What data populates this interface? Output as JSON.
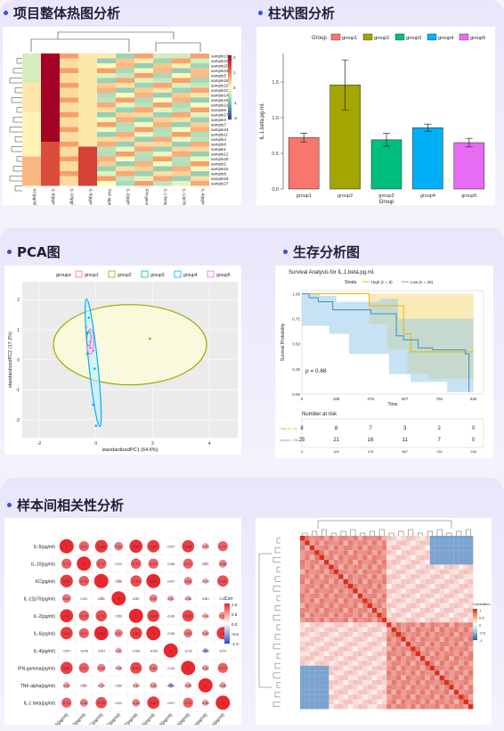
{
  "sections": {
    "heatmap": "项目整体热图分析",
    "bar": "柱状图分析",
    "pca": "PCA图",
    "survival": "生存分析图",
    "correlation": "样本间相关性分析"
  },
  "heatmap": {
    "samples": [
      "sample13",
      "sample22",
      "sample20",
      "sample23",
      "sample5",
      "sample18",
      "sample19",
      "sample10",
      "sample14",
      "sample15",
      "sample21",
      "sample6",
      "sample17",
      "sample3",
      "sample7",
      "sample24",
      "sample11",
      "sample4",
      "sample9",
      "sample1",
      "sample12",
      "sample25",
      "sample2",
      "sample16",
      "sample8",
      "sample26",
      "sample27"
    ],
    "variables": [
      "KC(pg/ml)",
      "IL-6(pg/ml)",
      "IL-10(pg/ml)",
      "IL-5(pg/ml)",
      "TNF-alpha(pg/ml)",
      "IL-2(pg/ml)",
      "IFN-gamma(pg/ml)",
      "IL-1 beta(pg/ml)",
      "IL-12p70(pg/ml)",
      "IL-4(pg/ml)"
    ],
    "scale_ticks": [
      "2",
      "1",
      "0",
      "-1",
      "-2"
    ]
  },
  "bar_chart": {
    "legend_title": "Group",
    "colors": [
      "#f8766d",
      "#a3a500",
      "#00bf7d",
      "#00b0f6",
      "#e76bf3"
    ],
    "chart_data": {
      "type": "bar",
      "categories": [
        "group1",
        "group2",
        "group3",
        "group4",
        "group5"
      ],
      "values": [
        0.72,
        1.46,
        0.69,
        0.86,
        0.65
      ],
      "errors": [
        0.06,
        0.35,
        0.09,
        0.05,
        0.06
      ],
      "xlabel": "Group",
      "ylabel": "IL.1.beta.pg.ml.",
      "ylim": [
        0,
        1.9
      ],
      "yticks": [
        "0.0",
        "0.5",
        "1.0",
        "1.5"
      ]
    }
  },
  "pca": {
    "legend_title": "groups",
    "groups": [
      "group1",
      "group2",
      "group3",
      "group4",
      "group5"
    ],
    "colors": [
      "#f8766d",
      "#a3a500",
      "#00bf7d",
      "#00b0f6",
      "#e76bf3"
    ],
    "xlabel": "standardizedPC1 (64.6%)",
    "ylabel": "standardizedPC2 (17.2%)",
    "xticks": [
      "-2",
      "0",
      "2",
      "4"
    ],
    "yticks": [
      "2",
      "1",
      "0",
      "-1",
      "-2"
    ]
  },
  "survival": {
    "title": "Survival Analysis for IL.1.beta.pg.ml.",
    "strata_label": "Strata",
    "high_label": "High (n = 8)",
    "low_label": "Low (n = 25)",
    "ylabel": "Survival Probability",
    "xlabel": "Time",
    "p_value": "p = 0.68",
    "yticks": [
      "1.00",
      "0.75",
      "0.50",
      "0.25",
      "0.00"
    ],
    "xticks": [
      "0",
      "189",
      "378",
      "567",
      "756",
      "945"
    ],
    "risk_title": "Number at risk",
    "risk_high": [
      "8",
      "8",
      "7",
      "3",
      "2",
      "0"
    ],
    "risk_low": [
      "25",
      "21",
      "16",
      "11",
      "7",
      "0"
    ]
  },
  "correlation": {
    "variables": [
      "IL-5(pg/ml)",
      "IL-10(pg/ml)",
      "KC(pg/ml)",
      "IL-12p70(pg/ml)",
      "IL-2(pg/ml)",
      "IL-6(pg/ml)",
      "IL-4(pg/ml)",
      "IFN-gamma(pg/ml)",
      "TNF-alpha(pg/ml)",
      "IL-1 beta(pg/ml)"
    ],
    "legend_title": "Corr",
    "legend_ticks": [
      "1.0",
      "0.5",
      "0.0",
      "-0.5",
      "-1.0"
    ],
    "matrix": [
      [
        1,
        0.71,
        0.89,
        0.61,
        0.92,
        0.87,
        -0.07,
        0.86,
        0.45,
        0.71
      ],
      [
        0.71,
        1,
        0.72,
        0.12,
        0.73,
        0.71,
        -0.06,
        0.71,
        0.27,
        0.56
      ],
      [
        0.89,
        0.72,
        1,
        0.26,
        0.79,
        0.99,
        -0.07,
        0.58,
        0.39,
        0.79
      ],
      [
        0.61,
        0.12,
        0.26,
        1,
        0.2,
        0.57,
        0.41,
        0.38,
        0.2,
        0.12
      ],
      [
        0.92,
        0.73,
        0.79,
        0.2,
        1,
        0.86,
        -0.06,
        0.82,
        0.38,
        0.55
      ],
      [
        0.87,
        0.71,
        0.99,
        0.57,
        0.86,
        1,
        -0.06,
        0.61,
        0.46,
        0.87
      ],
      [
        -0.07,
        -0.06,
        -0.07,
        0.41,
        -0.06,
        -0.06,
        1,
        -0.02,
        -0.32,
        -0.07
      ],
      [
        0.86,
        0.71,
        0.58,
        0.38,
        0.82,
        0.61,
        -0.02,
        1,
        0.44,
        0.71
      ],
      [
        0.45,
        0.27,
        0.39,
        0.2,
        0.38,
        0.46,
        -0.32,
        0.44,
        1,
        0.45
      ],
      [
        0.71,
        0.56,
        0.79,
        0.12,
        0.55,
        0.87,
        -0.07,
        0.71,
        0.45,
        1
      ]
    ],
    "cluster_legend_title": "Correlation",
    "cluster_legend_ticks": [
      "1",
      "0.5",
      "0",
      "-0.5",
      "-1"
    ]
  }
}
